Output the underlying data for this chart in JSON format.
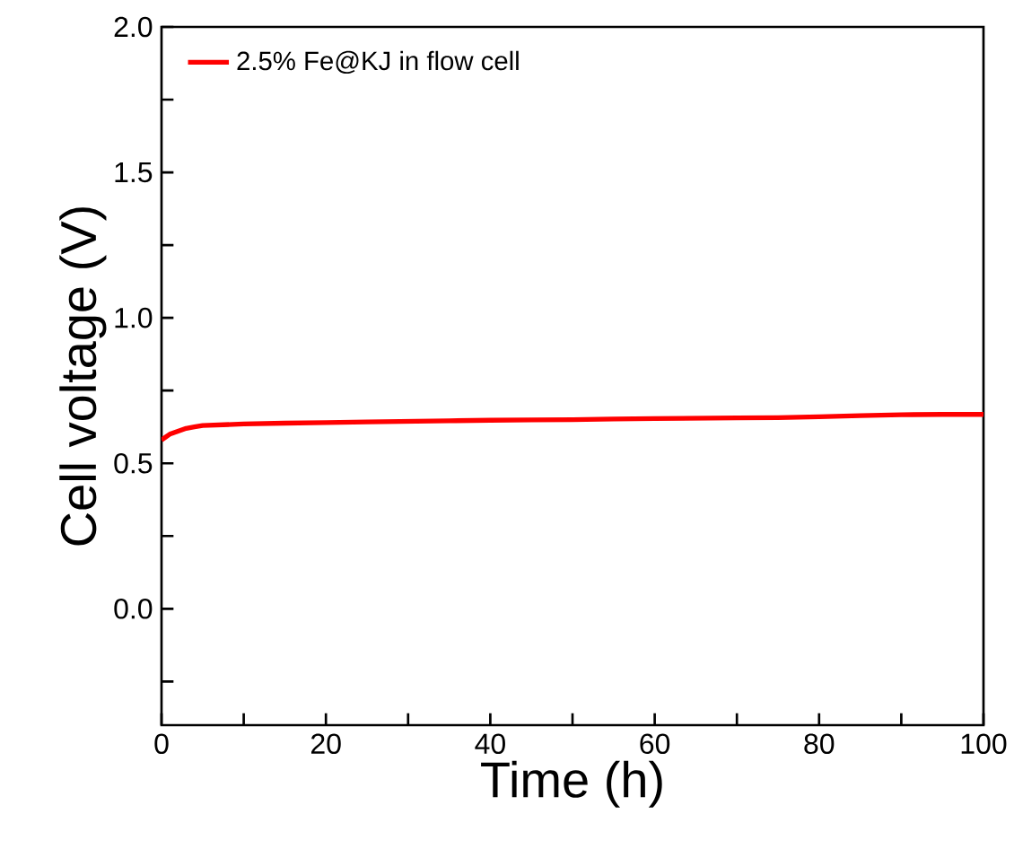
{
  "chart_data": {
    "type": "line",
    "xlabel": "Time (h)",
    "ylabel": "Cell voltage (V)",
    "x": [
      0,
      0.5,
      1,
      2,
      3,
      4,
      5,
      7,
      10,
      15,
      20,
      25,
      30,
      35,
      40,
      45,
      50,
      55,
      60,
      65,
      70,
      75,
      80,
      85,
      90,
      95,
      100
    ],
    "series": [
      {
        "name": "2.5% Fe@KJ in flow cell",
        "color": "#ff0000",
        "values": [
          0.58,
          0.59,
          0.6,
          0.61,
          0.62,
          0.625,
          0.63,
          0.632,
          0.635,
          0.638,
          0.64,
          0.642,
          0.644,
          0.646,
          0.648,
          0.649,
          0.65,
          0.652,
          0.654,
          0.655,
          0.656,
          0.657,
          0.66,
          0.664,
          0.667,
          0.668,
          0.668
        ]
      }
    ],
    "xlim": [
      0,
      100
    ],
    "ylim": [
      -0.4,
      2.0
    ],
    "xticks": [
      0,
      {
        "value": 10,
        "label": null
      },
      20,
      {
        "value": 30,
        "label": null
      },
      40,
      {
        "value": 50,
        "label": null
      },
      60,
      {
        "value": 70,
        "label": null
      },
      80,
      {
        "value": 90,
        "label": null
      },
      100
    ],
    "yticks": [
      {
        "value": -0.25,
        "label": null
      },
      {
        "value": 0,
        "label": "0.0"
      },
      {
        "value": 0.25,
        "label": null
      },
      {
        "value": 0.5,
        "label": "0.5"
      },
      {
        "value": 0.75,
        "label": null
      },
      {
        "value": 1,
        "label": "1.0"
      },
      {
        "value": 1.25,
        "label": null
      },
      {
        "value": 1.5,
        "label": "1.5"
      },
      {
        "value": 1.75,
        "label": null
      },
      {
        "value": 2,
        "label": "2.0"
      }
    ],
    "legend": "top left",
    "grid": false,
    "marker": "none",
    "line_style": "solid"
  }
}
